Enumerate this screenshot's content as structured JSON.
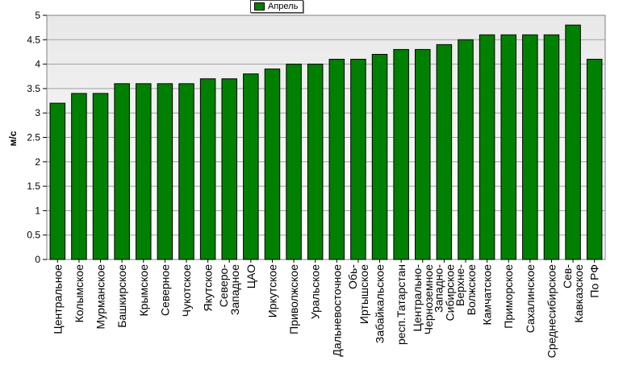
{
  "chart_data": {
    "type": "bar",
    "ylabel": "м/с",
    "ylim": [
      0,
      5
    ],
    "yticks": [
      "0",
      "0.5",
      "1",
      "1.5",
      "2",
      "2.5",
      "3",
      "3.5",
      "4",
      "4.5",
      "5"
    ],
    "grid": true,
    "legend_position": "top-center",
    "series": [
      {
        "name": "Апрель",
        "color": "#008000",
        "values": [
          3.2,
          3.4,
          3.4,
          3.6,
          3.6,
          3.6,
          3.6,
          3.7,
          3.7,
          3.8,
          3.9,
          4.0,
          4.0,
          4.1,
          4.1,
          4.2,
          4.3,
          4.3,
          4.4,
          4.5,
          4.6,
          4.6,
          4.6,
          4.6,
          4.8,
          4.1
        ]
      }
    ],
    "categories": [
      [
        "Центральное"
      ],
      [
        "Колымское"
      ],
      [
        "Мурманское"
      ],
      [
        "Башкирское"
      ],
      [
        "Крымское"
      ],
      [
        "Северное"
      ],
      [
        "Чукотское"
      ],
      [
        "Якутское"
      ],
      [
        "Северо-",
        "Западное"
      ],
      [
        "ЦАО"
      ],
      [
        "Иркутское"
      ],
      [
        "Приволжское"
      ],
      [
        "Уральское"
      ],
      [
        "Дальневосточное"
      ],
      [
        "Обь-",
        "Иртышское"
      ],
      [
        "Забайкальское"
      ],
      [
        "респ.Татарстан"
      ],
      [
        "Центрально-",
        "Черноземное"
      ],
      [
        "Западно-",
        "Сибирское"
      ],
      [
        "Верхне-",
        "Волжское"
      ],
      [
        "Камчатское"
      ],
      [
        "Приморское"
      ],
      [
        "Сахалинское"
      ],
      [
        "Среднесибирское"
      ],
      [
        "Сев-",
        "Кавказское"
      ],
      [
        "По РФ"
      ]
    ]
  }
}
